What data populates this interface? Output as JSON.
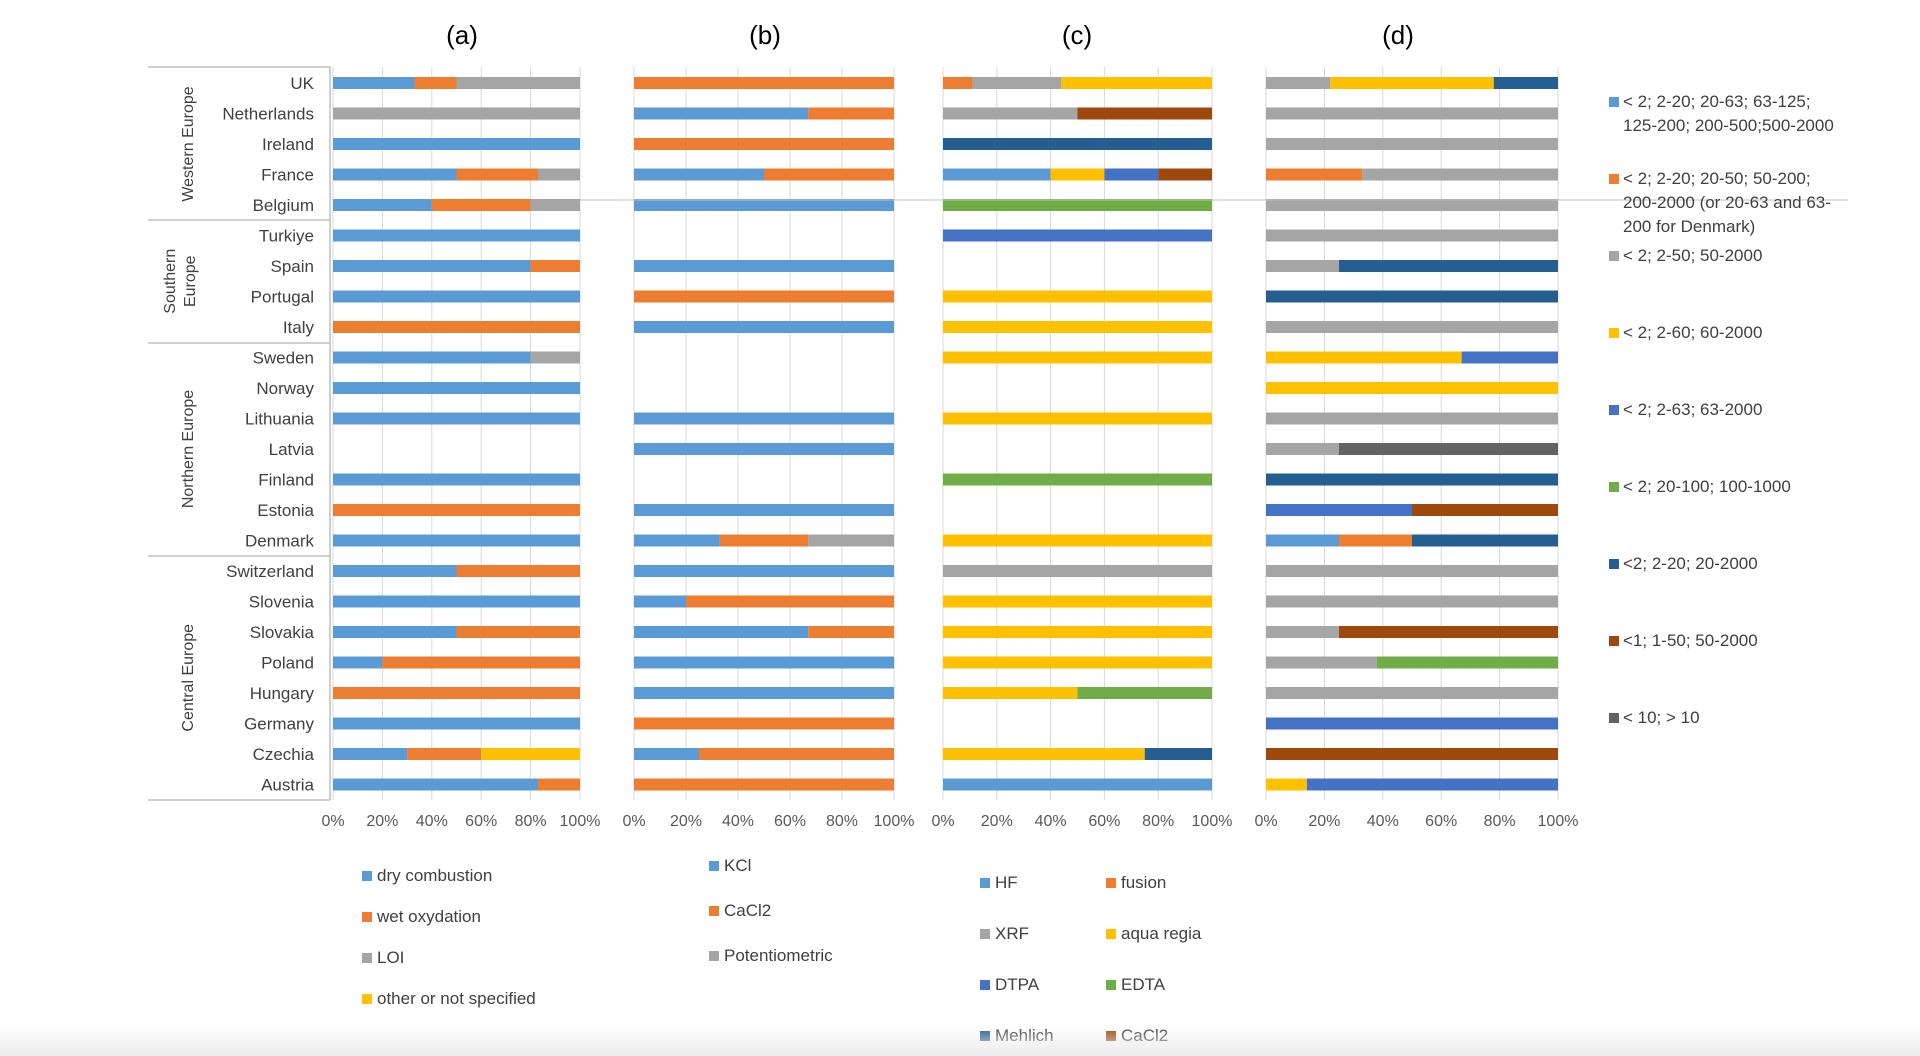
{
  "colors": {
    "blue": "#5b9bd5",
    "orange": "#ed7d31",
    "gray": "#a5a5a5",
    "yellow": "#ffc000",
    "royal": "#4472c4",
    "green": "#70ad47",
    "navy": "#255e91",
    "brown": "#9e480e",
    "dark": "#636363",
    "grid": "#d9d9d9",
    "axis": "#bfbfbf"
  },
  "chart_data": {
    "type": "bar",
    "orientation": "horizontal",
    "stacked": "100%",
    "categories": [
      "UK",
      "Netherlands",
      "Ireland",
      "France",
      "Belgium",
      "Turkiye",
      "Spain",
      "Portugal",
      "Italy",
      "Sweden",
      "Norway",
      "Lithuania",
      "Latvia",
      "Finland",
      "Estonia",
      "Denmark",
      "Switzerland",
      "Slovenia",
      "Slovakia",
      "Poland",
      "Hungary",
      "Germany",
      "Czechia",
      "Austria"
    ],
    "regions": [
      {
        "name": "Western Europe",
        "start": 0,
        "end": 4
      },
      {
        "name": "Southern Europe",
        "start": 5,
        "end": 8
      },
      {
        "name": "Northern Europe",
        "start": 9,
        "end": 15
      },
      {
        "name": "Central Europe",
        "start": 16,
        "end": 23
      }
    ],
    "x_ticks": [
      "0%",
      "20%",
      "40%",
      "60%",
      "80%",
      "100%"
    ],
    "xlim": [
      0,
      100
    ],
    "grid": true,
    "panels": [
      {
        "title": "(a)",
        "legend": [
          {
            "label": "dry combustion",
            "color": "#5b9bd5"
          },
          {
            "label": "wet oxydation",
            "color": "#ed7d31"
          },
          {
            "label": "LOI",
            "color": "#a5a5a5"
          },
          {
            "label": "other or not specified",
            "color": "#ffc000"
          }
        ],
        "rows": [
          [
            [
              "#5b9bd5",
              33
            ],
            [
              "#ed7d31",
              17
            ],
            [
              "#a5a5a5",
              50
            ]
          ],
          [
            [
              "#a5a5a5",
              100
            ]
          ],
          [
            [
              "#5b9bd5",
              100
            ]
          ],
          [
            [
              "#5b9bd5",
              50
            ],
            [
              "#ed7d31",
              33
            ],
            [
              "#a5a5a5",
              17
            ]
          ],
          [
            [
              "#5b9bd5",
              40
            ],
            [
              "#ed7d31",
              40
            ],
            [
              "#a5a5a5",
              20
            ]
          ],
          [
            [
              "#5b9bd5",
              100
            ]
          ],
          [
            [
              "#5b9bd5",
              80
            ],
            [
              "#ed7d31",
              20
            ]
          ],
          [
            [
              "#5b9bd5",
              100
            ]
          ],
          [
            [
              "#ed7d31",
              100
            ]
          ],
          [
            [
              "#5b9bd5",
              80
            ],
            [
              "#a5a5a5",
              20
            ]
          ],
          [
            [
              "#5b9bd5",
              100
            ]
          ],
          [
            [
              "#5b9bd5",
              100
            ]
          ],
          [],
          [
            [
              "#5b9bd5",
              100
            ]
          ],
          [
            [
              "#ed7d31",
              100
            ]
          ],
          [
            [
              "#5b9bd5",
              100
            ]
          ],
          [
            [
              "#5b9bd5",
              50
            ],
            [
              "#ed7d31",
              50
            ]
          ],
          [
            [
              "#5b9bd5",
              100
            ]
          ],
          [
            [
              "#5b9bd5",
              50
            ],
            [
              "#ed7d31",
              50
            ]
          ],
          [
            [
              "#5b9bd5",
              20
            ],
            [
              "#ed7d31",
              80
            ]
          ],
          [
            [
              "#ed7d31",
              100
            ]
          ],
          [
            [
              "#5b9bd5",
              100
            ]
          ],
          [
            [
              "#5b9bd5",
              30
            ],
            [
              "#ed7d31",
              30
            ],
            [
              "#ffc000",
              40
            ]
          ],
          [
            [
              "#5b9bd5",
              83
            ],
            [
              "#ed7d31",
              17
            ]
          ]
        ]
      },
      {
        "title": "(b)",
        "legend": [
          {
            "label": "KCl",
            "color": "#5b9bd5"
          },
          {
            "label": "CaCl2",
            "color": "#ed7d31"
          },
          {
            "label": "Potentiometric",
            "color": "#a5a5a5"
          }
        ],
        "rows": [
          [
            [
              "#ed7d31",
              100
            ]
          ],
          [
            [
              "#5b9bd5",
              67
            ],
            [
              "#ed7d31",
              33
            ]
          ],
          [
            [
              "#ed7d31",
              100
            ]
          ],
          [
            [
              "#5b9bd5",
              50
            ],
            [
              "#ed7d31",
              50
            ]
          ],
          [
            [
              "#5b9bd5",
              100
            ]
          ],
          [],
          [
            [
              "#5b9bd5",
              100
            ]
          ],
          [
            [
              "#ed7d31",
              100
            ]
          ],
          [
            [
              "#5b9bd5",
              100
            ]
          ],
          [],
          [],
          [
            [
              "#5b9bd5",
              100
            ]
          ],
          [
            [
              "#5b9bd5",
              100
            ]
          ],
          [],
          [
            [
              "#5b9bd5",
              100
            ]
          ],
          [
            [
              "#5b9bd5",
              33
            ],
            [
              "#ed7d31",
              34
            ],
            [
              "#a5a5a5",
              33
            ]
          ],
          [
            [
              "#5b9bd5",
              100
            ]
          ],
          [
            [
              "#5b9bd5",
              20
            ],
            [
              "#ed7d31",
              80
            ]
          ],
          [
            [
              "#5b9bd5",
              67
            ],
            [
              "#ed7d31",
              33
            ]
          ],
          [
            [
              "#5b9bd5",
              100
            ]
          ],
          [
            [
              "#5b9bd5",
              100
            ]
          ],
          [
            [
              "#ed7d31",
              100
            ]
          ],
          [
            [
              "#5b9bd5",
              25
            ],
            [
              "#ed7d31",
              75
            ]
          ],
          [
            [
              "#ed7d31",
              100
            ]
          ]
        ]
      },
      {
        "title": "(c)",
        "legend": [
          {
            "label": "HF",
            "color": "#5b9bd5"
          },
          {
            "label": "fusion",
            "color": "#ed7d31"
          },
          {
            "label": "XRF",
            "color": "#a5a5a5"
          },
          {
            "label": "aqua regia",
            "color": "#ffc000"
          },
          {
            "label": "DTPA",
            "color": "#4472c4"
          },
          {
            "label": "EDTA",
            "color": "#70ad47"
          },
          {
            "label": "Mehlich",
            "color": "#255e91"
          },
          {
            "label": "CaCl2",
            "color": "#9e480e"
          }
        ],
        "rows": [
          [
            [
              "#ed7d31",
              11
            ],
            [
              "#a5a5a5",
              33
            ],
            [
              "#ffc000",
              56
            ]
          ],
          [
            [
              "#a5a5a5",
              50
            ],
            [
              "#9e480e",
              50
            ]
          ],
          [
            [
              "#255e91",
              100
            ]
          ],
          [
            [
              "#5b9bd5",
              40
            ],
            [
              "#ffc000",
              20
            ],
            [
              "#4472c4",
              20
            ],
            [
              "#9e480e",
              20
            ]
          ],
          [
            [
              "#70ad47",
              100
            ]
          ],
          [
            [
              "#4472c4",
              100
            ]
          ],
          [],
          [
            [
              "#ffc000",
              100
            ]
          ],
          [
            [
              "#ffc000",
              100
            ]
          ],
          [
            [
              "#ffc000",
              100
            ]
          ],
          [],
          [
            [
              "#ffc000",
              100
            ]
          ],
          [],
          [
            [
              "#70ad47",
              100
            ]
          ],
          [],
          [
            [
              "#ffc000",
              100
            ]
          ],
          [
            [
              "#a5a5a5",
              100
            ]
          ],
          [
            [
              "#ffc000",
              100
            ]
          ],
          [
            [
              "#ffc000",
              100
            ]
          ],
          [
            [
              "#ffc000",
              100
            ]
          ],
          [
            [
              "#ffc000",
              50
            ],
            [
              "#70ad47",
              50
            ]
          ],
          [],
          [
            [
              "#ffc000",
              75
            ],
            [
              "#255e91",
              25
            ]
          ],
          [
            [
              "#5b9bd5",
              100
            ]
          ]
        ]
      },
      {
        "title": "(d)",
        "legend": [
          {
            "label": "< 2; 2-20; 20-63; 63-125; 125-200; 200-500;500-2000",
            "color": "#5b9bd5"
          },
          {
            "label": "< 2; 2-20; 20-50; 50-200; 200-2000 (or 20-63 and 63-200 for Denmark)",
            "color": "#ed7d31"
          },
          {
            "label": "< 2; 2-50; 50-2000",
            "color": "#a5a5a5"
          },
          {
            "label": "< 2; 2-60; 60-2000",
            "color": "#ffc000"
          },
          {
            "label": "< 2; 2-63; 63-2000",
            "color": "#4472c4"
          },
          {
            "label": "< 2; 20-100; 100-1000",
            "color": "#70ad47"
          },
          {
            "label": "<2; 2-20; 20-2000",
            "color": "#255e91"
          },
          {
            "label": "<1; 1-50; 50-2000",
            "color": "#9e480e"
          },
          {
            "label": "< 10; > 10",
            "color": "#636363"
          }
        ],
        "rows": [
          [
            [
              "#a5a5a5",
              22
            ],
            [
              "#ffc000",
              56
            ],
            [
              "#255e91",
              22
            ]
          ],
          [
            [
              "#a5a5a5",
              100
            ]
          ],
          [
            [
              "#a5a5a5",
              100
            ]
          ],
          [
            [
              "#ed7d31",
              33
            ],
            [
              "#a5a5a5",
              67
            ]
          ],
          [
            [
              "#a5a5a5",
              100
            ]
          ],
          [
            [
              "#a5a5a5",
              100
            ]
          ],
          [
            [
              "#a5a5a5",
              25
            ],
            [
              "#255e91",
              75
            ]
          ],
          [
            [
              "#255e91",
              100
            ]
          ],
          [
            [
              "#a5a5a5",
              100
            ]
          ],
          [
            [
              "#ffc000",
              67
            ],
            [
              "#4472c4",
              33
            ]
          ],
          [
            [
              "#ffc000",
              100
            ]
          ],
          [
            [
              "#a5a5a5",
              100
            ]
          ],
          [
            [
              "#a5a5a5",
              25
            ],
            [
              "#636363",
              75
            ]
          ],
          [
            [
              "#255e91",
              100
            ]
          ],
          [
            [
              "#4472c4",
              50
            ],
            [
              "#9e480e",
              50
            ]
          ],
          [
            [
              "#5b9bd5",
              25
            ],
            [
              "#ed7d31",
              25
            ],
            [
              "#255e91",
              50
            ]
          ],
          [
            [
              "#a5a5a5",
              100
            ]
          ],
          [
            [
              "#a5a5a5",
              100
            ]
          ],
          [
            [
              "#a5a5a5",
              25
            ],
            [
              "#9e480e",
              75
            ]
          ],
          [
            [
              "#a5a5a5",
              38
            ],
            [
              "#70ad47",
              62
            ]
          ],
          [
            [
              "#a5a5a5",
              100
            ]
          ],
          [
            [
              "#4472c4",
              100
            ]
          ],
          [
            [
              "#9e480e",
              100
            ]
          ],
          [
            [
              "#ffc000",
              14
            ],
            [
              "#4472c4",
              86
            ]
          ]
        ]
      }
    ]
  }
}
